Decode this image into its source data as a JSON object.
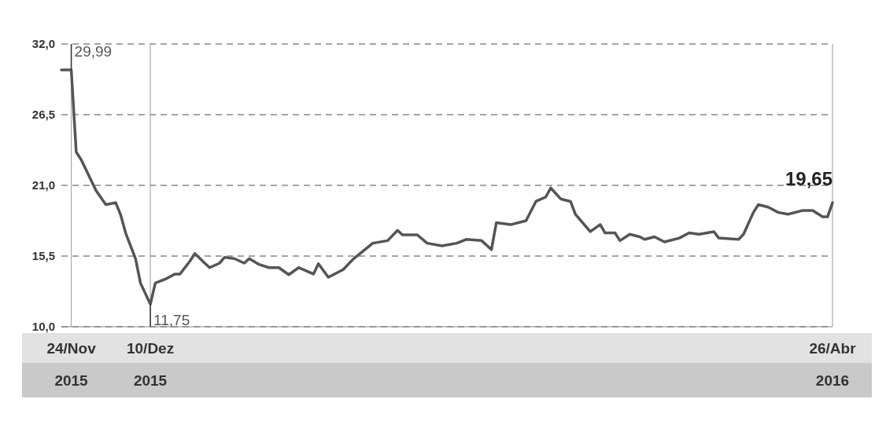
{
  "chart_data": {
    "type": "line",
    "x": [
      "2015-11-22",
      "2015-11-24",
      "2015-11-25",
      "2015-11-26",
      "2015-11-27",
      "2015-11-29",
      "2015-12-01",
      "2015-12-03",
      "2015-12-04",
      "2015-12-05",
      "2015-12-07",
      "2015-12-08",
      "2015-12-10",
      "2015-12-11",
      "2015-12-13",
      "2015-12-15",
      "2015-12-16",
      "2015-12-18",
      "2015-12-19",
      "2015-12-21",
      "2015-12-22",
      "2015-12-24",
      "2015-12-25",
      "2015-12-27",
      "2015-12-29",
      "2015-12-30",
      "2016-01-01",
      "2016-01-03",
      "2016-01-05",
      "2016-01-07",
      "2016-01-09",
      "2016-01-12",
      "2016-01-13",
      "2016-01-15",
      "2016-01-18",
      "2016-01-20",
      "2016-01-24",
      "2016-01-27",
      "2016-01-29",
      "2016-01-30",
      "2016-02-02",
      "2016-02-04",
      "2016-02-07",
      "2016-02-10",
      "2016-02-12",
      "2016-02-15",
      "2016-02-17",
      "2016-02-18",
      "2016-02-21",
      "2016-02-24",
      "2016-02-26",
      "2016-02-28",
      "2016-02-29",
      "2016-03-02",
      "2016-03-04",
      "2016-03-05",
      "2016-03-08",
      "2016-03-10",
      "2016-03-11",
      "2016-03-13",
      "2016-03-14",
      "2016-03-16",
      "2016-03-18",
      "2016-03-19",
      "2016-03-21",
      "2016-03-23",
      "2016-03-26",
      "2016-03-28",
      "2016-03-30",
      "2016-04-02",
      "2016-04-03",
      "2016-04-07",
      "2016-04-08",
      "2016-04-10",
      "2016-04-11",
      "2016-04-13",
      "2016-04-15",
      "2016-04-17",
      "2016-04-20",
      "2016-04-22",
      "2016-04-24",
      "2016-04-25",
      "2016-04-26"
    ],
    "series": [
      {
        "color": "#555555",
        "values": [
          29.99,
          29.99,
          23.6,
          23.0,
          22.2,
          20.6,
          19.5,
          19.65,
          18.7,
          17.3,
          15.3,
          13.4,
          11.75,
          13.4,
          13.7,
          14.1,
          14.1,
          15.1,
          15.7,
          14.95,
          14.6,
          14.95,
          15.4,
          15.3,
          14.95,
          15.3,
          14.85,
          14.6,
          14.6,
          14.05,
          14.6,
          14.1,
          14.9,
          13.85,
          14.45,
          15.25,
          16.5,
          16.7,
          17.5,
          17.15,
          17.15,
          16.5,
          16.3,
          16.5,
          16.8,
          16.7,
          16.0,
          18.1,
          17.95,
          18.25,
          19.75,
          20.1,
          20.8,
          19.95,
          19.75,
          18.75,
          17.4,
          17.95,
          17.3,
          17.3,
          16.7,
          17.2,
          17.0,
          16.8,
          17.0,
          16.6,
          16.9,
          17.3,
          17.2,
          17.4,
          16.9,
          16.8,
          17.2,
          18.9,
          19.5,
          19.3,
          18.9,
          18.75,
          19.05,
          19.05,
          18.55,
          18.55,
          19.65
        ]
      }
    ],
    "xlim": [
      "2015-11-22",
      "2016-04-26"
    ],
    "xticks": [
      {
        "value": "2015-11-24",
        "label": "24/Nov 2015"
      },
      {
        "value": "2015-12-10",
        "label": "10/Dez 2015"
      },
      {
        "value": "2016-04-26",
        "label": "26/Abr 2016"
      }
    ],
    "ylim": [
      10,
      32
    ],
    "yticks": [
      {
        "value": 10,
        "label": "10,0"
      },
      {
        "value": 15.5,
        "label": "15,5"
      },
      {
        "value": 21,
        "label": "21,0"
      },
      {
        "value": 26.5,
        "label": "26,5"
      },
      {
        "value": 32,
        "label": "32,0"
      }
    ],
    "grid": true,
    "line_style": "solid",
    "marker": "none",
    "annotations": [
      {
        "text": "29,99",
        "x": "2015-11-24",
        "y": 29.99
      },
      {
        "text": "11,75",
        "x": "2015-12-10",
        "y": 11.75
      },
      {
        "text": "19,65",
        "x": "2016-04-26",
        "y": 19.65
      }
    ]
  }
}
